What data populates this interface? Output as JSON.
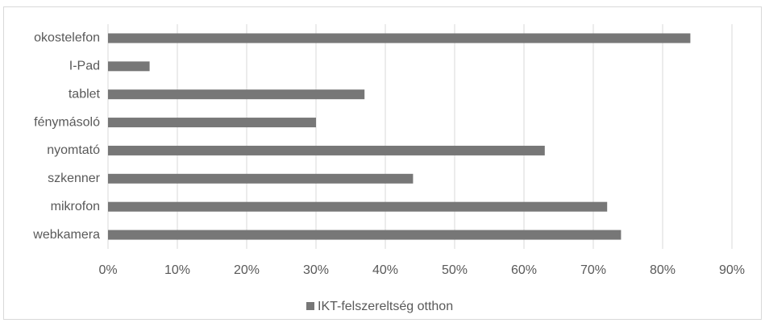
{
  "chart_data": {
    "type": "barh",
    "categories": [
      "okostelefon",
      "I-Pad",
      "tablet",
      "fénymásoló",
      "nyomtató",
      "szkenner",
      "mikrofon",
      "webkamera"
    ],
    "series": [
      {
        "name": "IKT-felszereltség otthon",
        "color": "#777777",
        "values": [
          84,
          6,
          37,
          30,
          63,
          44,
          72,
          74
        ]
      }
    ],
    "xlim": [
      0,
      90
    ],
    "xticks": [
      {
        "value": 0,
        "label": "0%"
      },
      {
        "value": 10,
        "label": "10%"
      },
      {
        "value": 20,
        "label": "20%"
      },
      {
        "value": 30,
        "label": "30%"
      },
      {
        "value": 40,
        "label": "40%"
      },
      {
        "value": 50,
        "label": "50%"
      },
      {
        "value": 60,
        "label": "60%"
      },
      {
        "value": 70,
        "label": "70%"
      },
      {
        "value": 80,
        "label": "80%"
      },
      {
        "value": 90,
        "label": "90%"
      }
    ],
    "grid": true,
    "legend": "bottom"
  }
}
